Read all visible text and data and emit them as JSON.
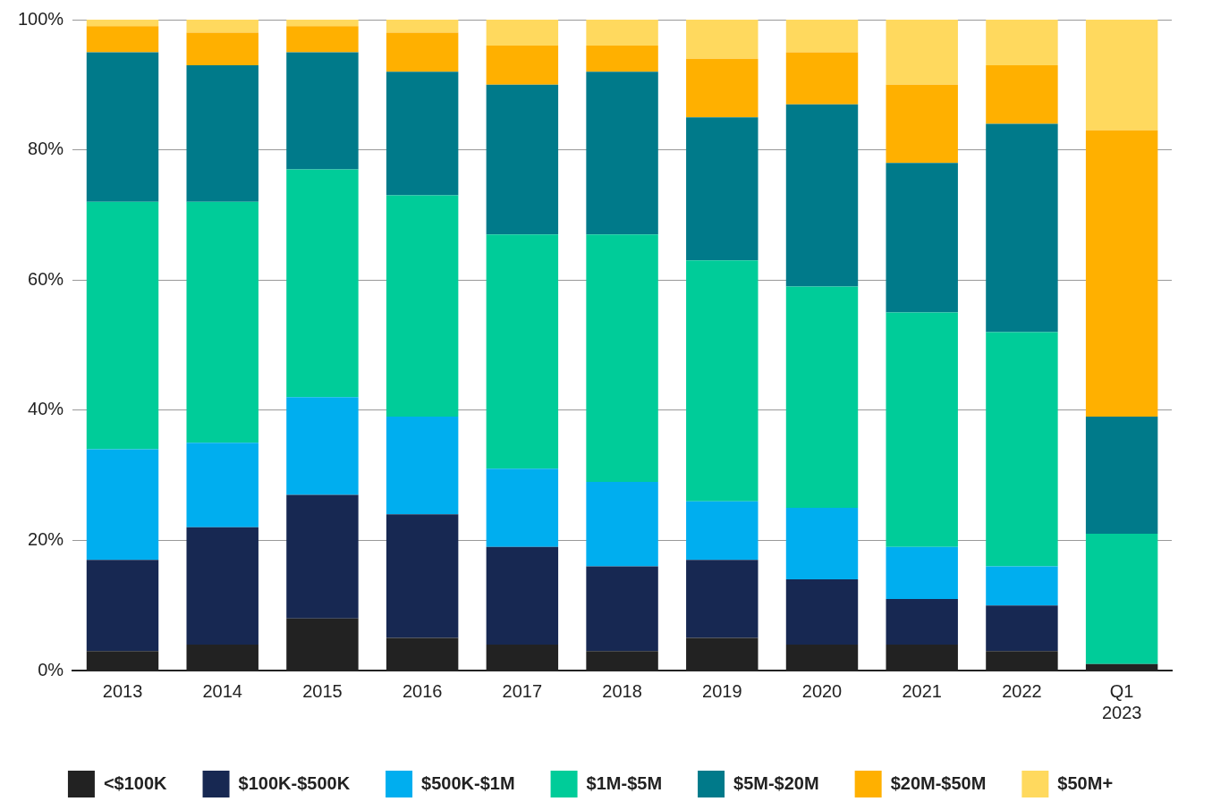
{
  "chart_data": {
    "type": "bar",
    "stacked": true,
    "categories": [
      "2013",
      "2014",
      "2015",
      "2016",
      "2017",
      "2018",
      "2019",
      "2020",
      "2021",
      "2022",
      "Q1 2023"
    ],
    "series": [
      {
        "name": "<$100K",
        "color": "#222222",
        "values": [
          3,
          4,
          8,
          5,
          4,
          3,
          5,
          4,
          4,
          3,
          1
        ]
      },
      {
        "name": "$100K-$500K",
        "color": "#172852",
        "values": [
          14,
          18,
          19,
          19,
          15,
          13,
          12,
          10,
          7,
          7,
          0
        ]
      },
      {
        "name": "$500K-$1M",
        "color": "#00aeef",
        "values": [
          17,
          13,
          15,
          15,
          12,
          13,
          9,
          11,
          8,
          6,
          0
        ]
      },
      {
        "name": "$1M-$5M",
        "color": "#00cc99",
        "values": [
          38,
          37,
          35,
          34,
          36,
          38,
          37,
          34,
          36,
          36,
          20
        ]
      },
      {
        "name": "$5M-$20M",
        "color": "#007a8a",
        "values": [
          23,
          21,
          18,
          19,
          23,
          25,
          22,
          28,
          23,
          32,
          18
        ]
      },
      {
        "name": "$20M-$50M",
        "color": "#ffb000",
        "values": [
          4,
          5,
          4,
          6,
          6,
          4,
          9,
          8,
          12,
          9,
          44
        ]
      },
      {
        "name": "$50M+",
        "color": "#ffd95e",
        "values": [
          1,
          2,
          1,
          2,
          4,
          4,
          6,
          5,
          10,
          7,
          17
        ]
      }
    ],
    "ylim": [
      0,
      100
    ],
    "yticks": [
      {
        "value": 0,
        "label": "0%"
      },
      {
        "value": 20,
        "label": "20%"
      },
      {
        "value": 40,
        "label": "40%"
      },
      {
        "value": 60,
        "label": "60%"
      },
      {
        "value": 80,
        "label": "80%"
      },
      {
        "value": 100,
        "label": "100%"
      }
    ],
    "grid": "y",
    "legend": "bottom"
  }
}
